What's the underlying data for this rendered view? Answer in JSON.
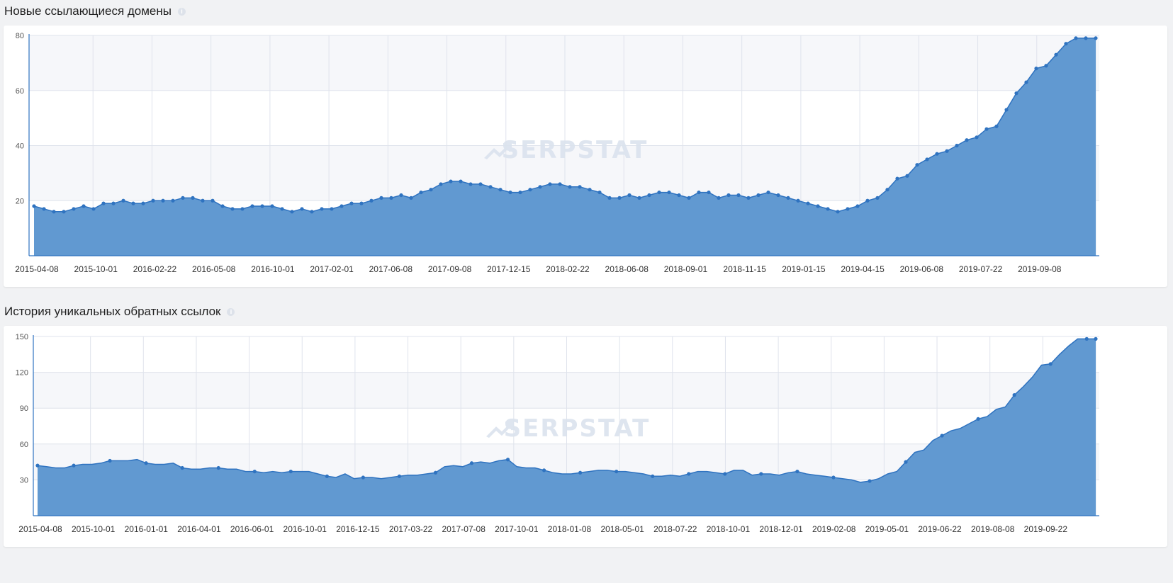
{
  "colors": {
    "fill": "#6199d1",
    "line": "#2f73c0",
    "grid": "#dfe3ec",
    "band": "#f6f7fa"
  },
  "watermark": "SERPSTAT",
  "info_icon": "info-icon",
  "chart_data": [
    {
      "type": "area",
      "title": "Новые ссылающиеся домены",
      "ylim": [
        0,
        80
      ],
      "yticks": [
        20,
        40,
        60,
        80
      ],
      "xticks": [
        "2015-04-08",
        "2015-10-01",
        "2016-02-22",
        "2016-05-08",
        "2016-10-01",
        "2017-02-01",
        "2017-06-08",
        "2017-09-08",
        "2017-12-15",
        "2018-02-22",
        "2018-06-08",
        "2018-09-01",
        "2018-11-15",
        "2019-01-15",
        "2019-04-15",
        "2019-06-08",
        "2019-07-22",
        "2019-09-08"
      ],
      "grid": true,
      "values": [
        18,
        17,
        16,
        16,
        17,
        18,
        17,
        19,
        19,
        20,
        19,
        19,
        20,
        20,
        20,
        21,
        21,
        20,
        20,
        18,
        17,
        17,
        18,
        18,
        18,
        17,
        16,
        17,
        16,
        17,
        17,
        18,
        19,
        19,
        20,
        21,
        21,
        22,
        21,
        23,
        24,
        26,
        27,
        27,
        26,
        26,
        25,
        24,
        23,
        23,
        24,
        25,
        26,
        26,
        25,
        25,
        24,
        23,
        21,
        21,
        22,
        21,
        22,
        23,
        23,
        22,
        21,
        23,
        23,
        21,
        22,
        22,
        21,
        22,
        23,
        22,
        21,
        20,
        19,
        18,
        17,
        16,
        17,
        18,
        20,
        21,
        24,
        28,
        29,
        33,
        35,
        37,
        38,
        40,
        42,
        43,
        46,
        47,
        53,
        59,
        63,
        68,
        69,
        73,
        77,
        79,
        79,
        79
      ]
    },
    {
      "type": "area",
      "title": "История уникальных обратных ссылок",
      "ylim": [
        0,
        150
      ],
      "yticks": [
        30,
        60,
        90,
        120,
        150
      ],
      "xticks": [
        "2015-04-08",
        "2015-10-01",
        "2016-01-01",
        "2016-04-01",
        "2016-06-01",
        "2016-10-01",
        "2016-12-15",
        "2017-03-22",
        "2017-07-08",
        "2017-10-01",
        "2018-01-08",
        "2018-05-01",
        "2018-07-22",
        "2018-10-01",
        "2018-12-01",
        "2019-02-08",
        "2019-05-01",
        "2019-06-22",
        "2019-08-08",
        "2019-09-22"
      ],
      "grid": true,
      "values": [
        42,
        41,
        40,
        40,
        42,
        43,
        43,
        44,
        46,
        46,
        46,
        47,
        44,
        43,
        43,
        44,
        40,
        39,
        39,
        40,
        40,
        39,
        39,
        37,
        37,
        36,
        37,
        36,
        37,
        37,
        37,
        35,
        33,
        32,
        35,
        31,
        32,
        32,
        31,
        32,
        33,
        34,
        34,
        35,
        36,
        41,
        42,
        41,
        44,
        45,
        44,
        46,
        47,
        41,
        40,
        40,
        38,
        36,
        35,
        35,
        36,
        37,
        38,
        38,
        37,
        37,
        36,
        35,
        33,
        33,
        34,
        33,
        35,
        37,
        37,
        36,
        35,
        38,
        38,
        34,
        35,
        35,
        34,
        36,
        37,
        35,
        34,
        33,
        32,
        31,
        30,
        28,
        29,
        31,
        35,
        37,
        45,
        53,
        55,
        63,
        67,
        71,
        73,
        77,
        81,
        83,
        89,
        91,
        101,
        108,
        116,
        126,
        127,
        135,
        142,
        148,
        148,
        148
      ]
    }
  ]
}
